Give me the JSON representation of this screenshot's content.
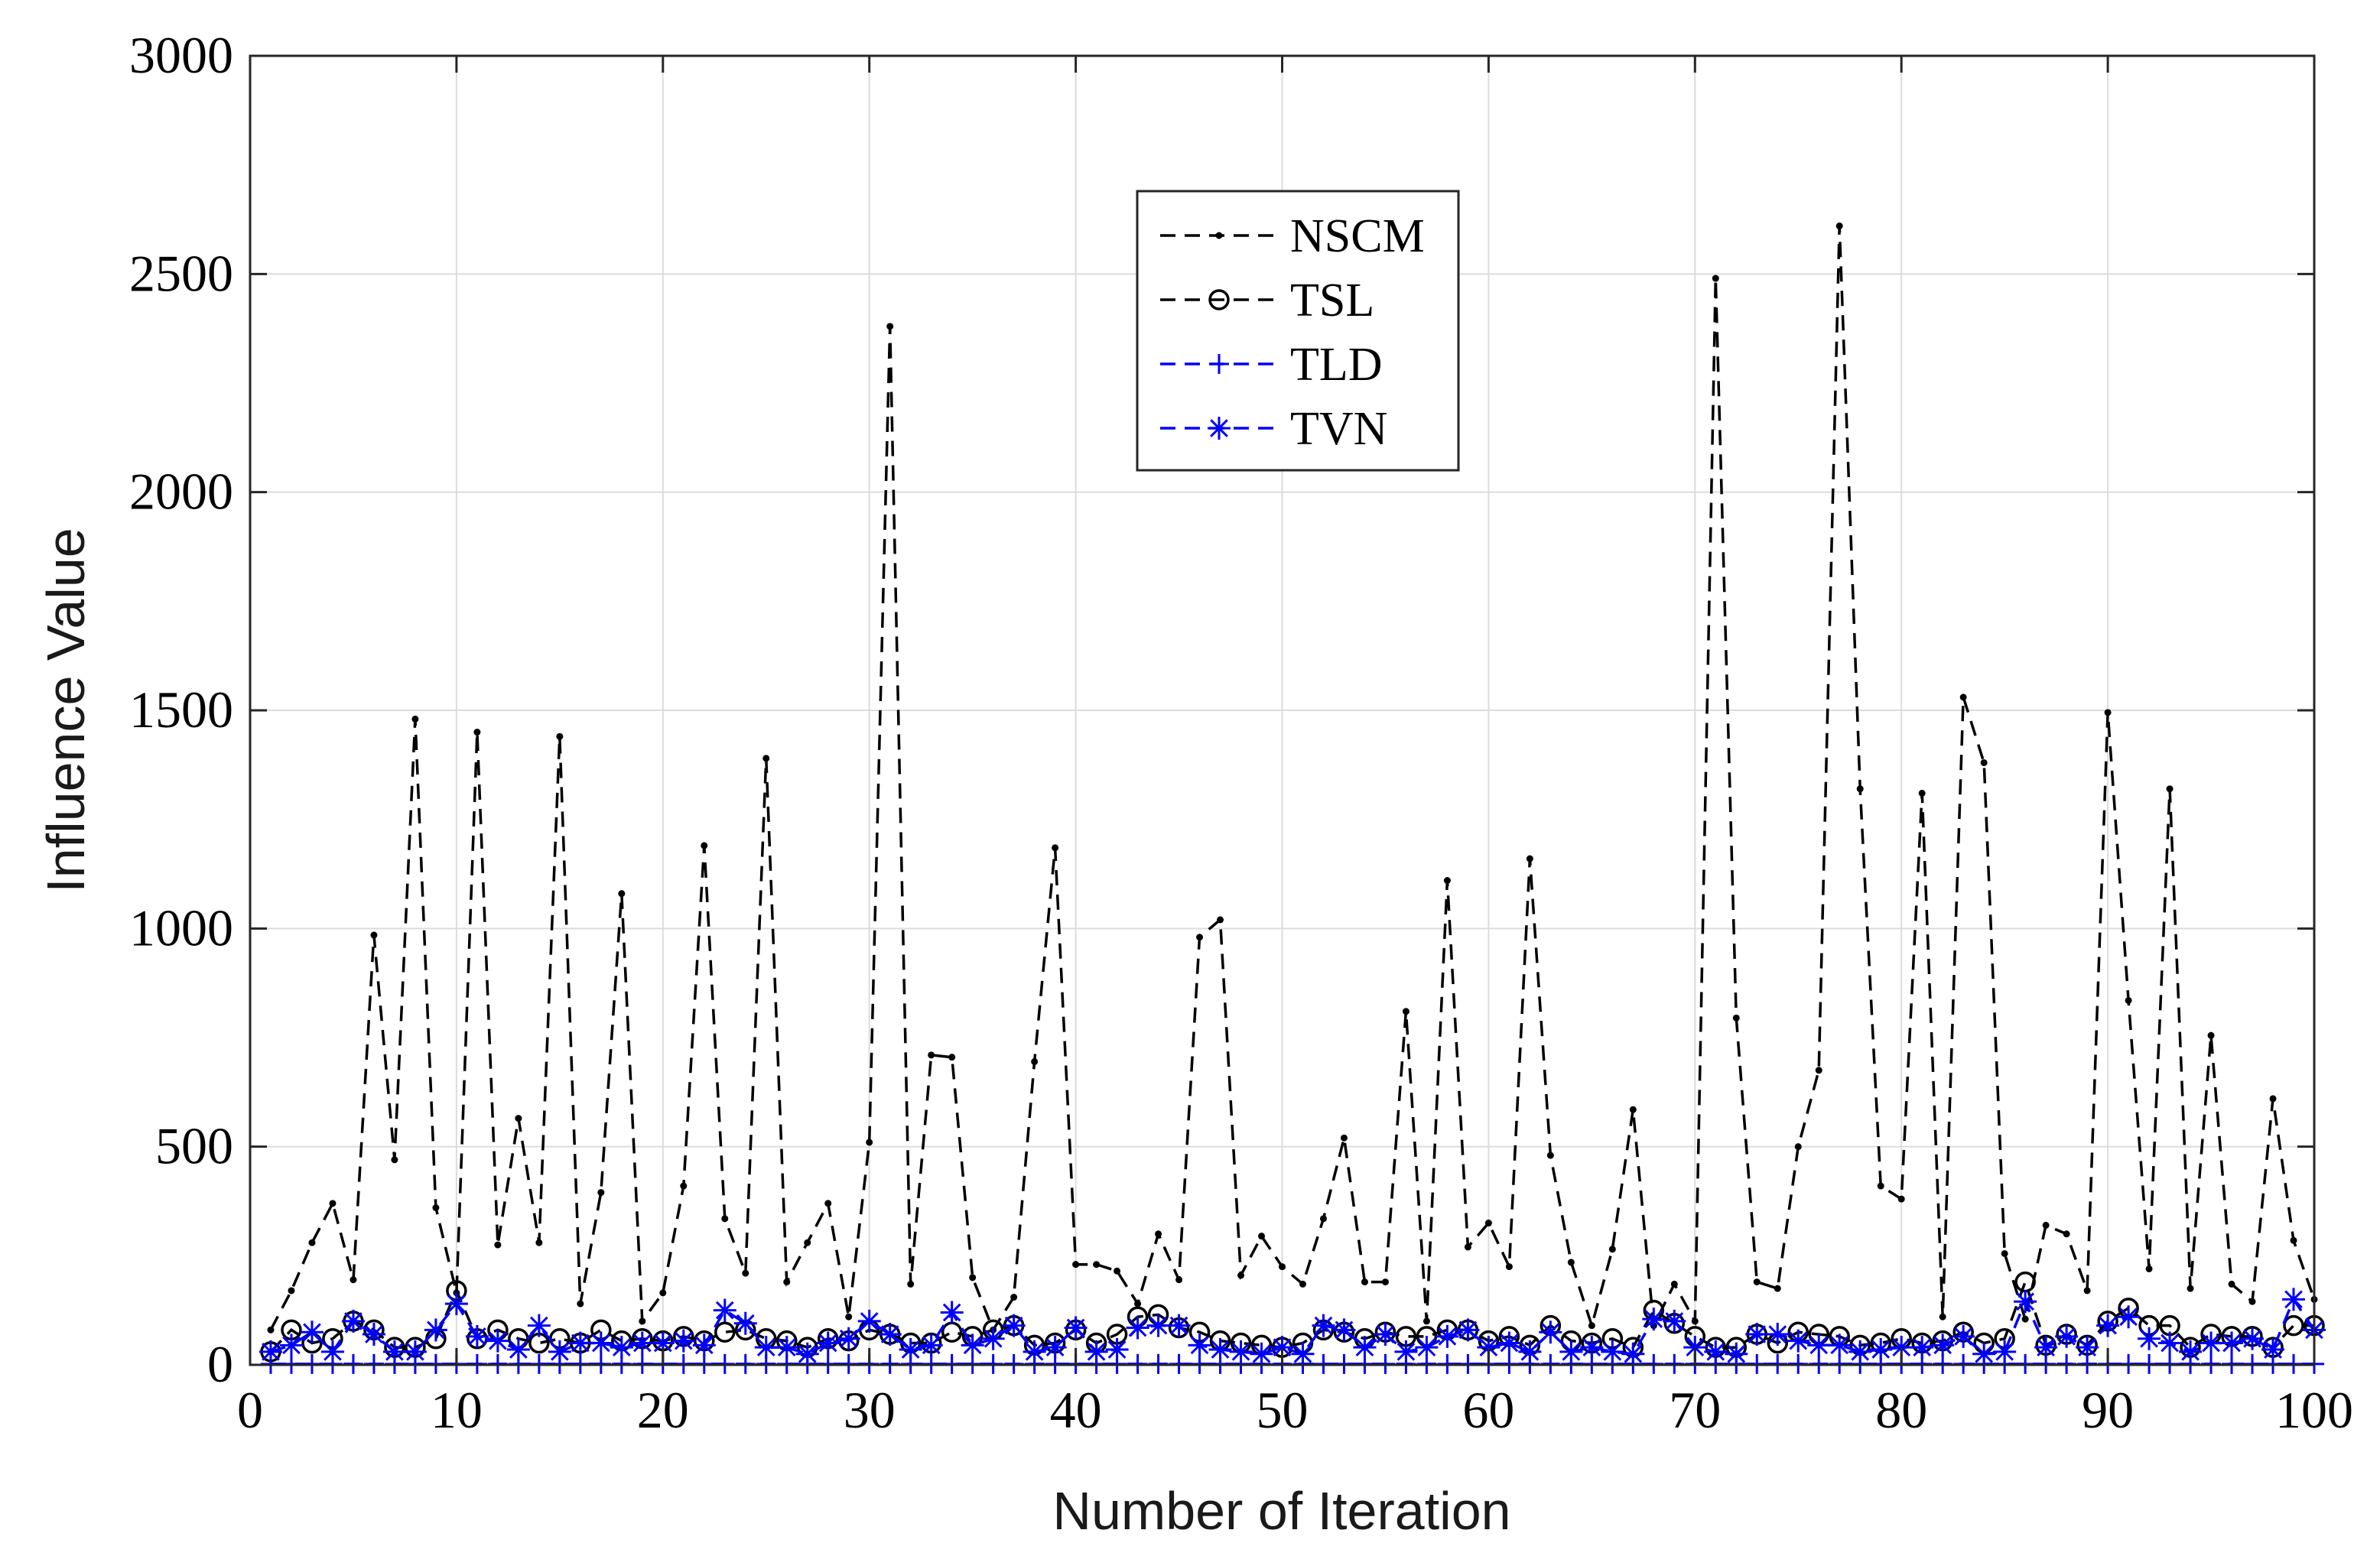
{
  "chart_data": {
    "type": "line",
    "xlabel": "Number of Iteration",
    "ylabel": "Influence Value",
    "xlim": [
      0,
      100
    ],
    "ylim": [
      0,
      3000
    ],
    "xticks": [
      0,
      10,
      20,
      30,
      40,
      50,
      60,
      70,
      80,
      90,
      100
    ],
    "yticks": [
      0,
      500,
      1000,
      1500,
      2000,
      2500,
      3000
    ],
    "grid": true,
    "legend_position": "top-center",
    "x": [
      1,
      2,
      3,
      4,
      5,
      6,
      7,
      8,
      9,
      10,
      11,
      12,
      13,
      14,
      15,
      16,
      17,
      18,
      19,
      20,
      21,
      22,
      23,
      24,
      25,
      26,
      27,
      28,
      29,
      30,
      31,
      32,
      33,
      34,
      35,
      36,
      37,
      38,
      39,
      40,
      41,
      42,
      43,
      44,
      45,
      46,
      47,
      48,
      49,
      50,
      51,
      52,
      53,
      54,
      55,
      56,
      57,
      58,
      59,
      60,
      61,
      62,
      63,
      64,
      65,
      66,
      67,
      68,
      69,
      70,
      71,
      72,
      73,
      74,
      75,
      76,
      77,
      78,
      79,
      80,
      81,
      82,
      83,
      84,
      85,
      86,
      87,
      88,
      89,
      90,
      91,
      92,
      93,
      94,
      95,
      96,
      97,
      98,
      99,
      100
    ],
    "series": [
      {
        "name": "NSCM",
        "color": "#000000",
        "marker": "dot",
        "values": [
          80,
          170,
          280,
          370,
          195,
          985,
          470,
          1480,
          360,
          165,
          1450,
          275,
          565,
          280,
          1440,
          140,
          395,
          1080,
          100,
          165,
          410,
          1190,
          335,
          210,
          1390,
          190,
          280,
          370,
          110,
          510,
          2380,
          185,
          710,
          705,
          200,
          80,
          155,
          695,
          1185,
          230,
          230,
          215,
          140,
          300,
          195,
          980,
          1020,
          205,
          295,
          225,
          185,
          335,
          520,
          190,
          190,
          810,
          100,
          1110,
          270,
          325,
          225,
          1160,
          480,
          235,
          90,
          265,
          585,
          90,
          185,
          100,
          2490,
          795,
          190,
          175,
          500,
          675,
          2610,
          1320,
          410,
          380,
          1310,
          110,
          1530,
          1380,
          255,
          105,
          320,
          300,
          170,
          1495,
          835,
          220,
          1320,
          175,
          755,
          185,
          145,
          610,
          285,
          150
        ]
      },
      {
        "name": "TSL",
        "color": "#000000",
        "marker": "circle",
        "values": [
          30,
          80,
          50,
          60,
          100,
          80,
          40,
          40,
          60,
          170,
          60,
          80,
          60,
          50,
          60,
          50,
          80,
          55,
          60,
          55,
          65,
          55,
          75,
          80,
          60,
          55,
          40,
          60,
          55,
          80,
          70,
          50,
          50,
          75,
          65,
          80,
          90,
          45,
          50,
          80,
          50,
          70,
          110,
          115,
          85,
          75,
          55,
          50,
          45,
          40,
          50,
          80,
          75,
          60,
          75,
          65,
          65,
          80,
          80,
          55,
          65,
          45,
          90,
          55,
          50,
          60,
          40,
          125,
          95,
          65,
          40,
          40,
          70,
          50,
          75,
          70,
          65,
          45,
          50,
          60,
          50,
          55,
          75,
          50,
          60,
          190,
          45,
          70,
          45,
          100,
          130,
          90,
          90,
          40,
          70,
          65,
          65,
          40,
          90,
          90
        ]
      },
      {
        "name": "TLD",
        "color": "#0000ff",
        "marker": "plus",
        "values": [
          2,
          2,
          2,
          2,
          2,
          2,
          2,
          2,
          2,
          2,
          2,
          2,
          2,
          2,
          2,
          2,
          2,
          2,
          2,
          2,
          2,
          2,
          2,
          2,
          2,
          2,
          2,
          2,
          2,
          2,
          2,
          2,
          2,
          2,
          2,
          2,
          2,
          2,
          2,
          2,
          2,
          2,
          2,
          2,
          2,
          2,
          2,
          2,
          2,
          2,
          2,
          2,
          2,
          2,
          2,
          2,
          2,
          2,
          2,
          2,
          2,
          2,
          2,
          2,
          2,
          2,
          2,
          2,
          2,
          2,
          2,
          2,
          2,
          2,
          2,
          2,
          2,
          2,
          2,
          2,
          2,
          2,
          2,
          2,
          2,
          2,
          2,
          2,
          2,
          2,
          2,
          2,
          2,
          2,
          2,
          2,
          2,
          2,
          2,
          2
        ]
      },
      {
        "name": "TVN",
        "color": "#0000ff",
        "marker": "asterisk",
        "values": [
          30,
          45,
          75,
          30,
          100,
          70,
          30,
          30,
          80,
          140,
          65,
          55,
          35,
          90,
          30,
          50,
          50,
          40,
          50,
          50,
          55,
          45,
          125,
          95,
          40,
          40,
          25,
          50,
          60,
          100,
          70,
          35,
          45,
          120,
          45,
          60,
          90,
          30,
          40,
          85,
          30,
          35,
          85,
          90,
          90,
          45,
          35,
          30,
          25,
          40,
          25,
          90,
          80,
          40,
          70,
          30,
          40,
          65,
          80,
          40,
          50,
          30,
          75,
          30,
          40,
          30,
          25,
          105,
          100,
          40,
          30,
          25,
          70,
          70,
          55,
          45,
          45,
          30,
          35,
          40,
          40,
          45,
          65,
          25,
          30,
          145,
          40,
          65,
          40,
          90,
          110,
          60,
          50,
          30,
          50,
          50,
          60,
          35,
          150,
          80
        ]
      }
    ]
  }
}
